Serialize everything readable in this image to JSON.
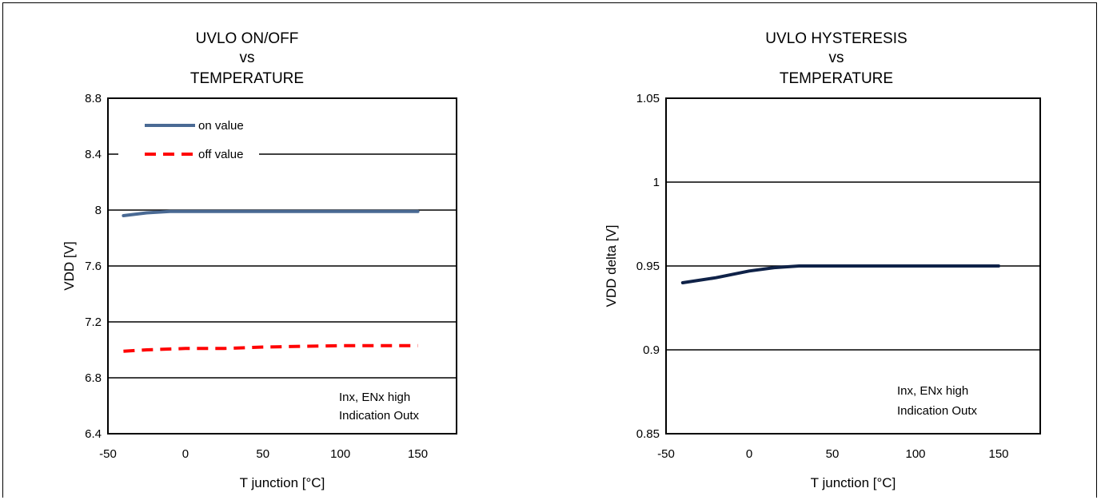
{
  "chart_data": [
    {
      "type": "line",
      "title": [
        "UVLO ON/OFF",
        "vs",
        "TEMPERATURE"
      ],
      "xlabel": "T junction  [°C]",
      "ylabel": "VDD [V]",
      "xlim": [
        -50,
        175
      ],
      "ylim": [
        6.4,
        8.8
      ],
      "xticks": [
        "-50",
        "0",
        "50",
        "100",
        "150"
      ],
      "xtick_values": [
        -50,
        0,
        50,
        100,
        150
      ],
      "yticks": [
        "6.4",
        "6.8",
        "7.2",
        "7.6",
        "8",
        "8.4",
        "8.8"
      ],
      "ytick_values": [
        6.4,
        6.8,
        7.2,
        7.6,
        8.0,
        8.4,
        8.8
      ],
      "grid": "horizontal",
      "legend": "top-left",
      "annotation": [
        "Inx, ENx high",
        "Indication Outx"
      ],
      "series": [
        {
          "name": "on value",
          "color": "#4a6a94",
          "style": "solid",
          "x": [
            -40,
            -25,
            -10,
            0,
            25,
            50,
            75,
            100,
            125,
            150
          ],
          "y": [
            7.96,
            7.98,
            7.99,
            7.99,
            7.99,
            7.99,
            7.99,
            7.99,
            7.99,
            7.99
          ]
        },
        {
          "name": "off value",
          "color": "#ff0000",
          "style": "dashed",
          "x": [
            -40,
            -25,
            0,
            25,
            50,
            75,
            100,
            125,
            150
          ],
          "y": [
            6.99,
            7.0,
            7.01,
            7.01,
            7.02,
            7.025,
            7.03,
            7.03,
            7.03
          ]
        }
      ]
    },
    {
      "type": "line",
      "title": [
        "UVLO HYSTERESIS",
        "vs",
        "TEMPERATURE"
      ],
      "xlabel": "T junction  [°C]",
      "ylabel": "VDD delta [V]",
      "xlim": [
        -50,
        175
      ],
      "ylim": [
        0.85,
        1.05
      ],
      "xticks": [
        "-50",
        "0",
        "50",
        "100",
        "150"
      ],
      "xtick_values": [
        -50,
        0,
        50,
        100,
        150
      ],
      "yticks": [
        "0.85",
        "0.9",
        "0.95",
        "1",
        "1.05"
      ],
      "ytick_values": [
        0.85,
        0.9,
        0.95,
        1.0,
        1.05
      ],
      "grid": "horizontal",
      "annotation": [
        "Inx, ENx high",
        "Indication Outx"
      ],
      "series": [
        {
          "color": "#0f2248",
          "style": "solid",
          "x": [
            -40,
            -20,
            0,
            15,
            30,
            50,
            75,
            100,
            125,
            150
          ],
          "y": [
            0.94,
            0.943,
            0.947,
            0.949,
            0.95,
            0.95,
            0.95,
            0.95,
            0.95,
            0.95
          ]
        }
      ]
    }
  ]
}
